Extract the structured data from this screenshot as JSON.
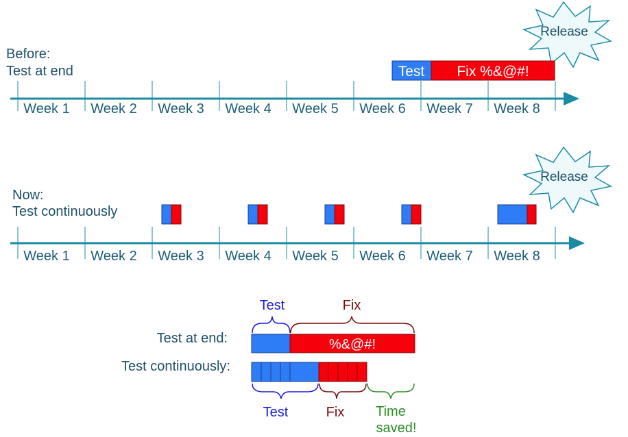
{
  "colors": {
    "axis": "#1b8aa3",
    "week_text": "#1b5e73",
    "label_text": "#1c4f66",
    "test_blue": "#2f7df6",
    "fix_red": "#f5000b",
    "dark_red": "#7a0a0a",
    "green": "#2a8f24",
    "brace_blue": "#1a1ad9",
    "burst_fill": "#eef9fc"
  },
  "weeks": [
    "Week 1",
    "Week 2",
    "Week 3",
    "Week 4",
    "Week 5",
    "Week 6",
    "Week 7",
    "Week 8"
  ],
  "before": {
    "label_line1": "Before:",
    "label_line2": "Test at end",
    "test_label": "Test",
    "fix_label": "Fix %&@#!",
    "release": "Release"
  },
  "now": {
    "label_line1": "Now:",
    "label_line2": "Test continuously",
    "release": "Release"
  },
  "comparison": {
    "test_at_end_label": "Test at end:",
    "test_continuously_label": "Test continuously:",
    "top_test_label": "Test",
    "top_fix_label": "Fix",
    "fix_bar_text": "%&@#!",
    "bottom_test_label": "Test",
    "bottom_fix_label": "Fix",
    "time_saved_line1": "Time",
    "time_saved_line2": "saved!"
  }
}
